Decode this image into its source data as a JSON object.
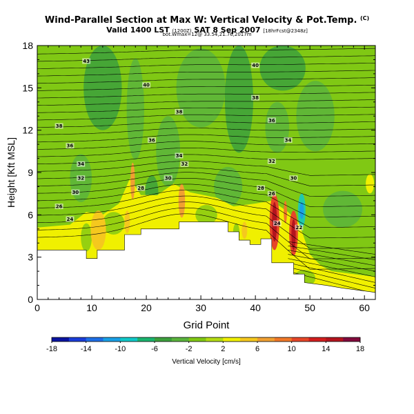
{
  "header": {
    "title": "Wind-Parallel Section at Max W: Vertical Velocity & Pot.Temp.",
    "title_units": "(C)",
    "subtitle_main": "Valid 1400 LST",
    "subtitle_utc": "(1200Z)",
    "subtitle_date": "SAT 8 Sep 2007",
    "subtitle_fcst": "[18hrFcst@2348z]",
    "location_line": "bot.Wmax=12@ 33.54,21.76,2017m"
  },
  "chart_data": {
    "type": "heatmap",
    "title": "Wind-Parallel Section at Max W: Vertical Velocity & Pot.Temp.",
    "xlabel": "Grid Point",
    "ylabel": "Height [Kft MSL]",
    "xlim": [
      0,
      62
    ],
    "ylim": [
      0,
      18
    ],
    "xticks": [
      0,
      10,
      20,
      30,
      40,
      50,
      60
    ],
    "yticks": [
      0,
      3,
      6,
      9,
      12,
      15,
      18
    ],
    "colorbar": {
      "label": "Vertical Velocity [cm/s]",
      "ticks": [
        "-18",
        "-14",
        "-10",
        "-6",
        "-2",
        "2",
        "6",
        "10",
        "14",
        "18"
      ],
      "colors": [
        "#0a14a0",
        "#1a3cd8",
        "#1e6ee6",
        "#19a0e6",
        "#10c8c8",
        "#1ab46e",
        "#3ca03c",
        "#5ab43c",
        "#80c814",
        "#b4dc14",
        "#f0f000",
        "#f5c81e",
        "#f0a032",
        "#f07828",
        "#e64628",
        "#d21e1e",
        "#b4141e",
        "#820a3c"
      ]
    },
    "terrain": [
      [
        0,
        3.5
      ],
      [
        9,
        3.5
      ],
      [
        9,
        2.9
      ],
      [
        11,
        2.9
      ],
      [
        11,
        3.5
      ],
      [
        16,
        3.5
      ],
      [
        16,
        4.6
      ],
      [
        19,
        4.6
      ],
      [
        19,
        5.0
      ],
      [
        26,
        5.0
      ],
      [
        26,
        5.5
      ],
      [
        35,
        5.5
      ],
      [
        35,
        4.8
      ],
      [
        37,
        4.8
      ],
      [
        37,
        4.2
      ],
      [
        39,
        4.2
      ],
      [
        39,
        3.9
      ],
      [
        41,
        3.9
      ],
      [
        41,
        4.3
      ],
      [
        43,
        4.3
      ],
      [
        43,
        2.6
      ],
      [
        47,
        2.6
      ],
      [
        47,
        1.8
      ],
      [
        49,
        1.8
      ],
      [
        49,
        1.2
      ],
      [
        53,
        1.0
      ],
      [
        56,
        0.8
      ],
      [
        60,
        0.6
      ],
      [
        62,
        0.5
      ]
    ],
    "theta_contour_labels": [
      {
        "x": 9,
        "y": 16.9,
        "text": "43"
      },
      {
        "x": 40,
        "y": 16.6,
        "text": "40"
      },
      {
        "x": 20,
        "y": 15.2,
        "text": "40"
      },
      {
        "x": 40,
        "y": 14.3,
        "text": "38"
      },
      {
        "x": 26,
        "y": 13.3,
        "text": "38"
      },
      {
        "x": 4,
        "y": 12.3,
        "text": "38"
      },
      {
        "x": 43,
        "y": 12.7,
        "text": "36"
      },
      {
        "x": 6,
        "y": 10.9,
        "text": "36"
      },
      {
        "x": 21,
        "y": 11.3,
        "text": "36"
      },
      {
        "x": 46,
        "y": 11.3,
        "text": "34"
      },
      {
        "x": 26,
        "y": 10.2,
        "text": "34"
      },
      {
        "x": 8,
        "y": 9.6,
        "text": "34"
      },
      {
        "x": 27,
        "y": 9.6,
        "text": "32"
      },
      {
        "x": 43,
        "y": 9.8,
        "text": "32"
      },
      {
        "x": 8,
        "y": 8.6,
        "text": "32"
      },
      {
        "x": 24,
        "y": 8.6,
        "text": "30"
      },
      {
        "x": 47,
        "y": 8.6,
        "text": "30"
      },
      {
        "x": 7,
        "y": 7.6,
        "text": "30"
      },
      {
        "x": 19,
        "y": 7.9,
        "text": "28"
      },
      {
        "x": 41,
        "y": 7.9,
        "text": "28"
      },
      {
        "x": 4,
        "y": 6.6,
        "text": "26"
      },
      {
        "x": 43,
        "y": 7.5,
        "text": "26"
      },
      {
        "x": 6,
        "y": 5.7,
        "text": "24"
      },
      {
        "x": 44,
        "y": 5.4,
        "text": "24"
      },
      {
        "x": 48,
        "y": 5.1,
        "text": "22"
      }
    ],
    "updraft_cores": [
      {
        "x": 43.5,
        "y": 5.5,
        "value": 12
      },
      {
        "x": 47,
        "y": 4.6,
        "value": 10
      },
      {
        "x": 11,
        "y": 5.0,
        "value": 6
      },
      {
        "x": 26.5,
        "y": 7.0,
        "value": 8
      },
      {
        "x": 17.5,
        "y": 8.5,
        "value": 6
      }
    ],
    "downdraft_cores": [
      {
        "x": 48.5,
        "y": 6.3,
        "value": -8
      },
      {
        "x": 10,
        "y": 4.2,
        "value": -4
      }
    ]
  }
}
